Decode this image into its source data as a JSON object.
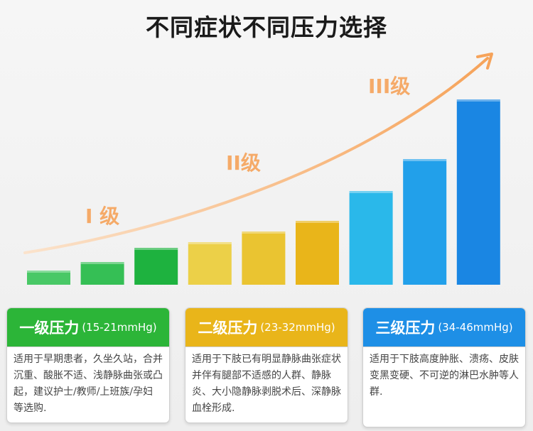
{
  "title": "不同症状不同压力选择",
  "colors": {
    "curve": "#f6a35a",
    "green": "#2cb538",
    "yellow": "#e9b51a",
    "blue": "#1e8fe6"
  },
  "levels": [
    {
      "label": "I 级"
    },
    {
      "label": "II级"
    },
    {
      "label": "III级"
    }
  ],
  "bars": [
    {
      "rank": 1,
      "color": "#49c866",
      "level": 1
    },
    {
      "rank": 2,
      "color": "#35bf55",
      "level": 1
    },
    {
      "rank": 3,
      "color": "#1eb23f",
      "level": 1
    },
    {
      "rank": 4,
      "color": "#ecd048",
      "level": 2
    },
    {
      "rank": 5,
      "color": "#eac431",
      "level": 2
    },
    {
      "rank": 6,
      "color": "#e9b51a",
      "level": 2
    },
    {
      "rank": 7,
      "color": "#2ab8ea",
      "level": 3
    },
    {
      "rank": 8,
      "color": "#22a0ea",
      "level": 3
    },
    {
      "rank": 9,
      "color": "#1a86e3",
      "level": 3
    }
  ],
  "cards": [
    {
      "name": "一级压力",
      "range": "(15-21mmHg)",
      "color": "#2cb538",
      "desc": "适用于早期患者，久坐久站，合并沉重、酸胀不适、浅静脉曲张或凸起，建议护士/教师/上班族/孕妇等选购."
    },
    {
      "name": "二级压力",
      "range": "(23-32mmHg)",
      "color": "#e9b51a",
      "desc": "适用于下肢已有明显静脉曲张症状并伴有腿部不适感的人群、静脉炎、大小隐静脉剥脱术后、深静脉血栓形成."
    },
    {
      "name": "三级压力",
      "range": "(34-46mmHg)",
      "color": "#1e8fe6",
      "desc": "适用于下肢高度肿胀、溃疡、皮肤变黑变硬、不可逆的淋巴水肿等人群."
    }
  ]
}
